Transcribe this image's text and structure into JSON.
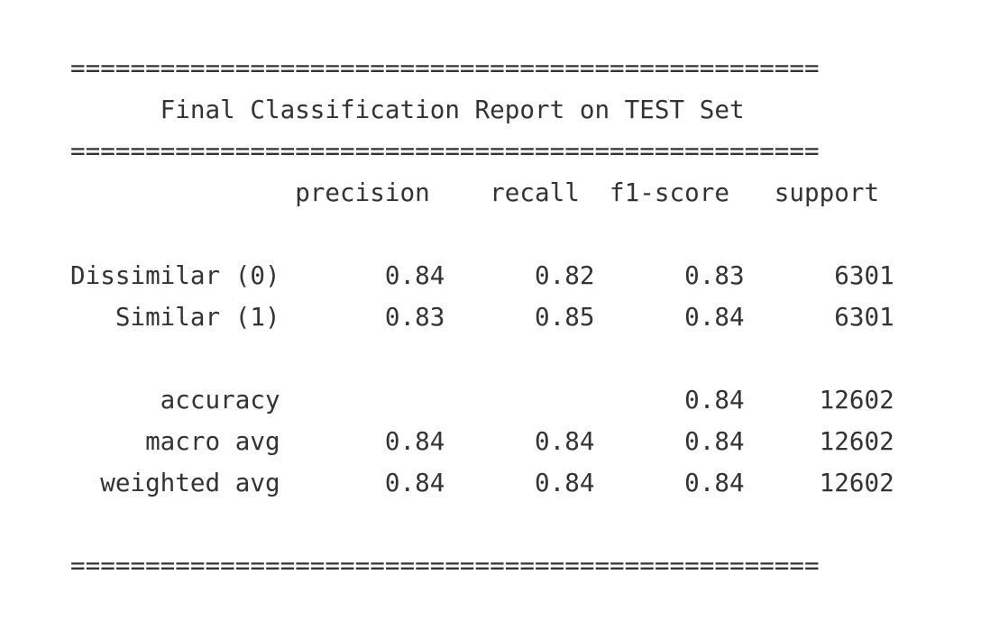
{
  "report": {
    "separator": "==================================================",
    "title": "      Final Classification Report on TEST Set",
    "header": "               precision    recall  f1-score   support",
    "blank": "",
    "rows": [
      "Dissimilar (0)       0.84      0.82      0.83      6301",
      "   Similar (1)       0.83      0.85      0.84      6301"
    ],
    "summary": [
      "      accuracy                           0.84     12602",
      "     macro avg       0.84      0.84      0.84     12602",
      "  weighted avg       0.84      0.84      0.84     12602"
    ]
  }
}
